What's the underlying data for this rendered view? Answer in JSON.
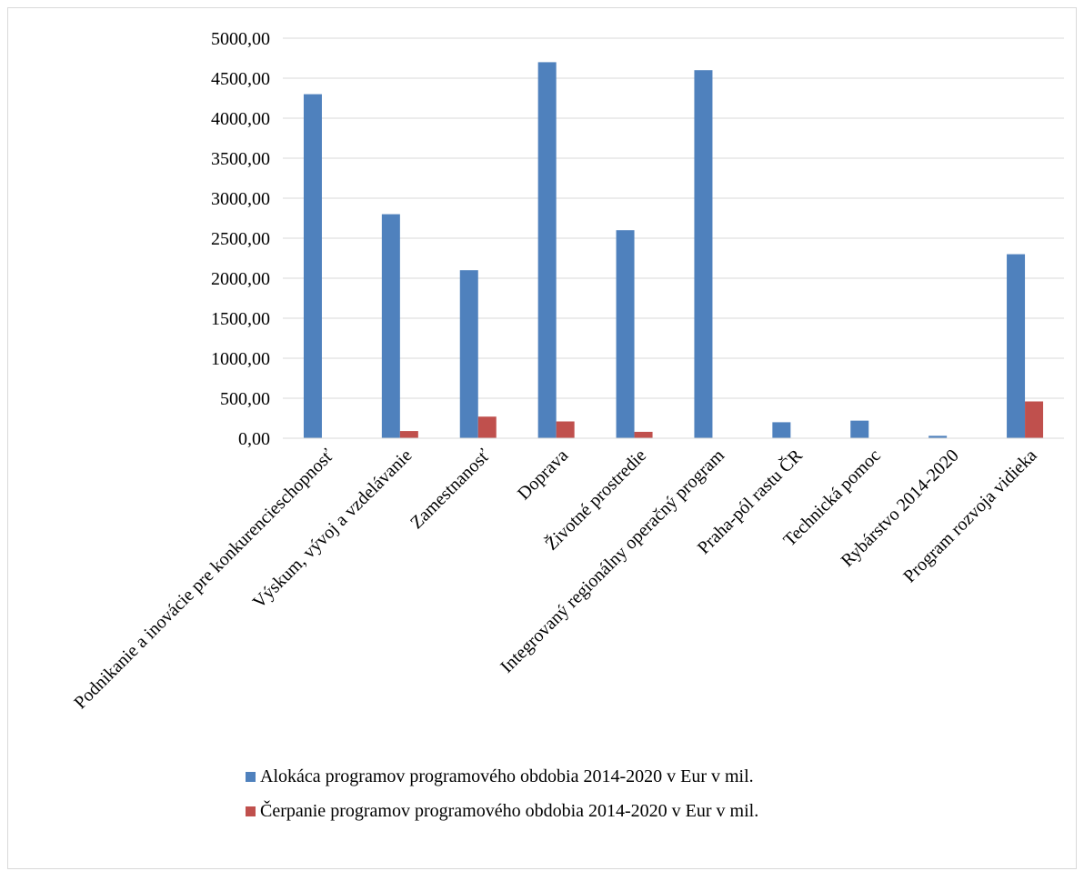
{
  "chart_data": {
    "type": "bar",
    "title": "",
    "xlabel": "",
    "ylabel": "",
    "ylim": [
      0,
      5000
    ],
    "yticks": [
      0,
      500,
      1000,
      1500,
      2000,
      2500,
      3000,
      3500,
      4000,
      4500,
      5000
    ],
    "ytick_labels": [
      "0,00",
      "500,00",
      "1000,00",
      "1500,00",
      "2000,00",
      "2500,00",
      "3000,00",
      "3500,00",
      "4000,00",
      "4500,00",
      "5000,00"
    ],
    "grid": true,
    "legend_position": "bottom",
    "categories": [
      "Podnikanie a inovácie pre konkurencieschopnosť",
      "Výskum, vývoj a vzdelávanie",
      "Zamestnanosť",
      "Doprava",
      "Životné prostredie",
      "Integrovaný regionálny operačný program",
      "Praha-pól rastu ČR",
      "Technická pomoc",
      "Rybárstvo 2014-2020",
      "Program rozvoja vidieka"
    ],
    "series": [
      {
        "name": "Alokáca programov programového obdobia 2014-2020 v Eur v mil.",
        "color": "#4f81bd",
        "values": [
          4300,
          2800,
          2100,
          4700,
          2600,
          4600,
          200,
          220,
          30,
          2300
        ]
      },
      {
        "name": "Čerpanie programov programového obdobia 2014-2020 v Eur  v mil.",
        "color": "#c0504d",
        "values": [
          0,
          90,
          270,
          210,
          80,
          0,
          0,
          0,
          0,
          460
        ]
      }
    ]
  }
}
